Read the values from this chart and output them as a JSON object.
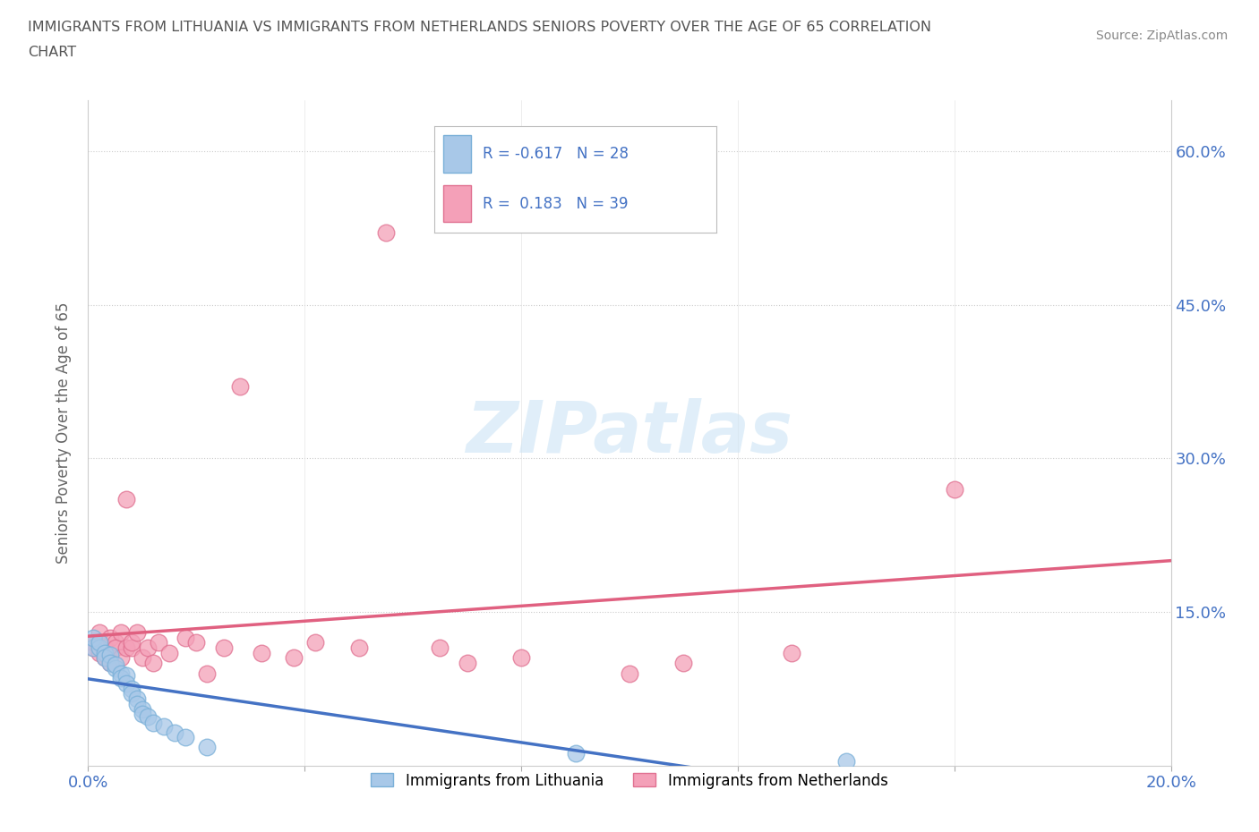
{
  "title_line1": "IMMIGRANTS FROM LITHUANIA VS IMMIGRANTS FROM NETHERLANDS SENIORS POVERTY OVER THE AGE OF 65 CORRELATION",
  "title_line2": "CHART",
  "source_text": "Source: ZipAtlas.com",
  "ylabel": "Seniors Poverty Over the Age of 65",
  "xlim": [
    0.0,
    0.2
  ],
  "ylim": [
    0.0,
    0.65
  ],
  "xticks": [
    0.0,
    0.04,
    0.08,
    0.12,
    0.16,
    0.2
  ],
  "yticks": [
    0.0,
    0.15,
    0.3,
    0.45,
    0.6
  ],
  "r_lithuania": -0.617,
  "n_lithuania": 28,
  "r_netherlands": 0.183,
  "n_netherlands": 39,
  "color_lithuania": "#a8c8e8",
  "color_netherlands": "#f4a0b8",
  "edge_lithuania": "#7ab0d8",
  "edge_netherlands": "#e07090",
  "line_color_lithuania": "#4472c4",
  "line_color_netherlands": "#e06080",
  "watermark": "ZIPatlas",
  "background_color": "#ffffff",
  "grid_color": "#cccccc",
  "title_color": "#555555",
  "axis_color": "#4472c4",
  "scatter_lithuania_x": [
    0.001,
    0.001,
    0.002,
    0.002,
    0.003,
    0.003,
    0.004,
    0.004,
    0.005,
    0.005,
    0.006,
    0.006,
    0.007,
    0.007,
    0.008,
    0.008,
    0.009,
    0.009,
    0.01,
    0.01,
    0.011,
    0.012,
    0.014,
    0.016,
    0.018,
    0.022,
    0.09,
    0.14
  ],
  "scatter_lithuania_y": [
    0.115,
    0.125,
    0.115,
    0.12,
    0.11,
    0.105,
    0.108,
    0.1,
    0.095,
    0.098,
    0.09,
    0.085,
    0.088,
    0.08,
    0.075,
    0.07,
    0.065,
    0.06,
    0.055,
    0.05,
    0.048,
    0.042,
    0.038,
    0.032,
    0.028,
    0.018,
    0.012,
    0.004
  ],
  "scatter_netherlands_x": [
    0.001,
    0.001,
    0.002,
    0.002,
    0.003,
    0.003,
    0.004,
    0.004,
    0.005,
    0.005,
    0.006,
    0.006,
    0.007,
    0.007,
    0.008,
    0.008,
    0.009,
    0.01,
    0.011,
    0.012,
    0.013,
    0.015,
    0.018,
    0.02,
    0.022,
    0.025,
    0.028,
    0.032,
    0.038,
    0.042,
    0.05,
    0.055,
    0.065,
    0.07,
    0.08,
    0.1,
    0.11,
    0.13,
    0.16
  ],
  "scatter_netherlands_y": [
    0.12,
    0.115,
    0.13,
    0.11,
    0.115,
    0.105,
    0.125,
    0.1,
    0.12,
    0.115,
    0.13,
    0.105,
    0.115,
    0.26,
    0.115,
    0.12,
    0.13,
    0.105,
    0.115,
    0.1,
    0.12,
    0.11,
    0.125,
    0.12,
    0.09,
    0.115,
    0.37,
    0.11,
    0.105,
    0.12,
    0.115,
    0.52,
    0.115,
    0.1,
    0.105,
    0.09,
    0.1,
    0.11,
    0.27
  ]
}
